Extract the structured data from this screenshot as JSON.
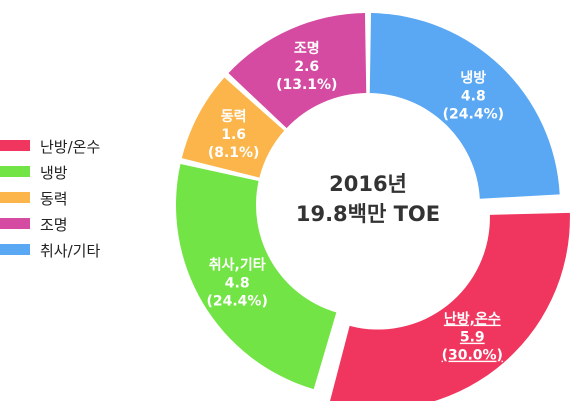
{
  "chart_data": {
    "type": "pie",
    "center_text": [
      "2016년",
      "19.8백만 TOE"
    ],
    "categories": [
      "난방/온수",
      "냉방",
      "동력",
      "조명",
      "취사/기타"
    ],
    "colors": [
      "#f0365e",
      "#73e445",
      "#fbb54a",
      "#d54ba2",
      "#5aa7f3"
    ],
    "slices": [
      {
        "category": "냉방",
        "value": 4.8,
        "percent": 24.4,
        "label": [
          "냉방",
          "4.8",
          "(24.4%)"
        ],
        "color": "#5aa7f3"
      },
      {
        "category": "난방/온수",
        "value": 5.9,
        "percent": 30.0,
        "label": [
          "난방,온수",
          "5.9",
          "(30.0%)"
        ],
        "color": "#f0365e",
        "exploded": true
      },
      {
        "category": "취사/기타",
        "value": 4.8,
        "percent": 24.4,
        "label": [
          "취사,기타",
          "4.8",
          "(24.4%)"
        ],
        "color": "#73e445"
      },
      {
        "category": "동력",
        "value": 1.6,
        "percent": 8.1,
        "label": [
          "동력",
          "1.6",
          "(8.1%)"
        ],
        "color": "#fbb54a"
      },
      {
        "category": "조명",
        "value": 2.6,
        "percent": 13.1,
        "label": [
          "조명",
          "2.6",
          "(13.1%)"
        ],
        "color": "#d54ba2"
      }
    ],
    "legend_position": "left"
  }
}
